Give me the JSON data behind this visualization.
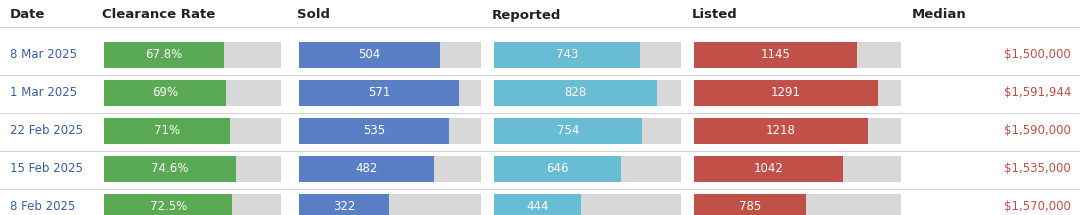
{
  "headers": [
    "Date",
    "Clearance Rate",
    "Sold",
    "Reported",
    "Listed",
    "Median"
  ],
  "rows": [
    {
      "date": "8 Mar 2025",
      "clearance_rate": 67.8,
      "clearance_label": "67.8%",
      "sold": 504,
      "reported": 743,
      "listed": 1145,
      "median": "$1,500,000"
    },
    {
      "date": "1 Mar 2025",
      "clearance_rate": 69.0,
      "clearance_label": "69%",
      "sold": 571,
      "reported": 828,
      "listed": 1291,
      "median": "$1,591,944"
    },
    {
      "date": "22 Feb 2025",
      "clearance_rate": 71.0,
      "clearance_label": "71%",
      "sold": 535,
      "reported": 754,
      "listed": 1218,
      "median": "$1,590,000"
    },
    {
      "date": "15 Feb 2025",
      "clearance_rate": 74.6,
      "clearance_label": "74.6%",
      "sold": 482,
      "reported": 646,
      "listed": 1042,
      "median": "$1,535,000"
    },
    {
      "date": "8 Feb 2025",
      "clearance_rate": 72.5,
      "clearance_label": "72.5%",
      "sold": 322,
      "reported": 444,
      "listed": 785,
      "median": "$1,570,000"
    }
  ],
  "max_clearance": 100,
  "max_sold": 650,
  "max_reported": 950,
  "max_listed": 1450,
  "color_green": "#5aaa55",
  "color_blue": "#5b7fc4",
  "color_lightblue": "#68bcd4",
  "color_red": "#c05048",
  "color_bg_bar": "#d8d8d8",
  "color_header_text": "#222222",
  "color_date_text": "#3a5fa0",
  "color_median_text": "#c05048",
  "color_bar_label": "#ffffff",
  "bg_color": "#ffffff",
  "header_fontsize": 9.5,
  "label_fontsize": 8.5,
  "date_fontsize": 8.5
}
